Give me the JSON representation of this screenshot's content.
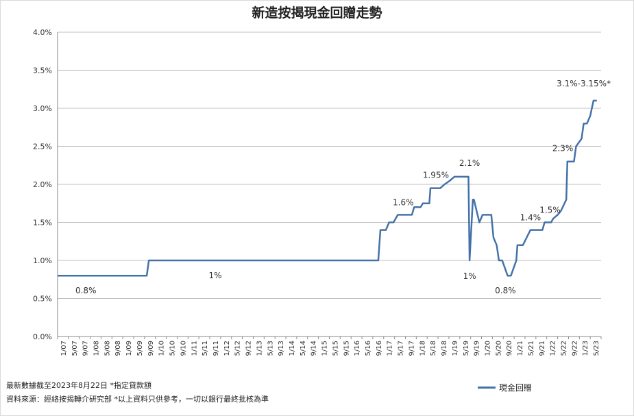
{
  "chart_data": {
    "type": "line",
    "title": "新造按揭現金回贈走勢",
    "xlabel": "",
    "ylabel": "",
    "ylim": [
      0,
      4.0
    ],
    "y_unit": "%",
    "y_ticks": [
      "0.0%",
      "0.5%",
      "1.0%",
      "1.5%",
      "2.0%",
      "2.5%",
      "3.0%",
      "3.5%",
      "4.0%"
    ],
    "x_tick_labels": [
      "1/07",
      "5/07",
      "9/07",
      "1/08",
      "5/08",
      "9/08",
      "1/09",
      "5/09",
      "9/09",
      "1/10",
      "5/10",
      "9/10",
      "1/11",
      "5/11",
      "9/11",
      "1/12",
      "5/12",
      "9/12",
      "1/13",
      "5/13",
      "9/13",
      "1/14",
      "5/14",
      "9/14",
      "1/15",
      "5/15",
      "9/15",
      "1/16",
      "5/16",
      "9/16",
      "1/17",
      "5/17",
      "9/17",
      "1/18",
      "5/18",
      "9/18",
      "1/19",
      "5/19",
      "9/19",
      "1/20",
      "5/20",
      "9/20",
      "1/21",
      "5/21",
      "9/21",
      "1/22",
      "5/22",
      "9/22",
      "1/23",
      "5/23"
    ],
    "grid": true,
    "legend": "bottom-right",
    "series": [
      {
        "name": "現金回贈",
        "color": "#4472a8",
        "x": [
          0,
          8.2,
          8.4,
          29.5,
          29.7,
          30.2,
          30.5,
          30.9,
          31.3,
          32.6,
          32.8,
          33.4,
          33.6,
          34.2,
          34.3,
          35.2,
          35.6,
          36.1,
          36.5,
          37.8,
          37.9,
          38.2,
          38.3,
          38.8,
          39.1,
          39.2,
          39.5,
          39.9,
          40.1,
          40.4,
          40.6,
          40.9,
          41.4,
          41.7,
          42.2,
          42.3,
          42.8,
          43.5,
          44.6,
          44.8,
          45.4,
          45.6,
          46.0,
          46.3,
          46.8,
          46.9,
          47.5,
          47.7,
          48.2,
          48.4,
          48.7,
          49.0,
          49.3,
          49.6
        ],
        "y": [
          0.8,
          0.8,
          1.0,
          1.0,
          1.4,
          1.4,
          1.5,
          1.5,
          1.6,
          1.6,
          1.7,
          1.7,
          1.75,
          1.75,
          1.95,
          1.95,
          2.0,
          2.05,
          2.1,
          2.1,
          1.0,
          1.8,
          1.8,
          1.5,
          1.6,
          1.6,
          1.6,
          1.6,
          1.3,
          1.2,
          1.0,
          1.0,
          0.8,
          0.8,
          1.0,
          1.2,
          1.2,
          1.4,
          1.4,
          1.5,
          1.5,
          1.55,
          1.6,
          1.65,
          1.8,
          2.3,
          2.3,
          2.5,
          2.6,
          2.8,
          2.8,
          2.9,
          3.1,
          3.1
        ],
        "labels": [
          {
            "text": "0.8%",
            "x": 2.6,
            "y": 0.8
          },
          {
            "text": "1%",
            "x": 14.5,
            "y": 1.0
          },
          {
            "text": "1.6%",
            "x": 31.8,
            "y": 1.6
          },
          {
            "text": "1.95%",
            "x": 34.8,
            "y": 1.95
          },
          {
            "text": "2.1%",
            "x": 37.9,
            "y": 2.1
          },
          {
            "text": "1%",
            "x": 37.9,
            "y": 1.0
          },
          {
            "text": "0.8%",
            "x": 41.2,
            "y": 0.8
          },
          {
            "text": "1.4%",
            "x": 43.5,
            "y": 1.4
          },
          {
            "text": "1.5%",
            "x": 45.3,
            "y": 1.5
          },
          {
            "text": "2.3%",
            "x": 46.6,
            "y": 2.3
          },
          {
            "text": "3.1%-3.15%*",
            "x": 48.4,
            "y": 3.1
          }
        ]
      }
    ]
  },
  "footnotes": {
    "line1": "最新數據截至2023年8月22日 *指定貸款額",
    "line2": "資料來源：經絡按揭轉介研究部  *以上資料只供參考，一切以銀行最終批核為準"
  },
  "legend": {
    "label": "現金回贈"
  }
}
